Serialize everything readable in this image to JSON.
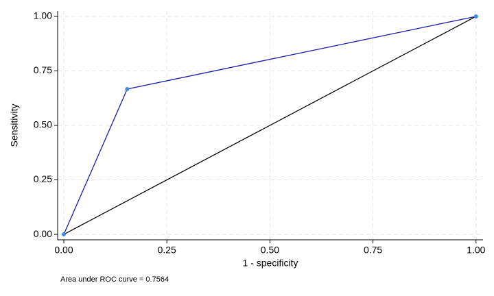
{
  "chart_data": {
    "type": "line",
    "xlabel": "1 - specificity",
    "ylabel": "Sensitivity",
    "note": "Area under ROC curve = 0.7564",
    "xlim": [
      -0.015,
      1.017
    ],
    "ylim": [
      -0.025,
      1.025
    ],
    "xticks": [
      {
        "value": 0,
        "label": "0.00"
      },
      {
        "value": 0.25,
        "label": "0.25"
      },
      {
        "value": 0.5,
        "label": "0.50"
      },
      {
        "value": 0.75,
        "label": "0.75"
      },
      {
        "value": 1,
        "label": "1.00"
      }
    ],
    "yticks": [
      {
        "value": 0,
        "label": "0.00"
      },
      {
        "value": 0.25,
        "label": "0.25"
      },
      {
        "value": 0.5,
        "label": "0.50"
      },
      {
        "value": 0.75,
        "label": "0.75"
      },
      {
        "value": 1,
        "label": "1.00"
      }
    ],
    "grid": true,
    "series": [
      {
        "x": [
          0,
          0.1538,
          1
        ],
        "values": [
          0,
          0.6667,
          1
        ],
        "color": "#1a1aa6",
        "marker_color": "#3b8ee0"
      },
      {
        "x": [
          0,
          1
        ],
        "values": [
          0,
          1
        ],
        "color": "#000000"
      }
    ]
  }
}
